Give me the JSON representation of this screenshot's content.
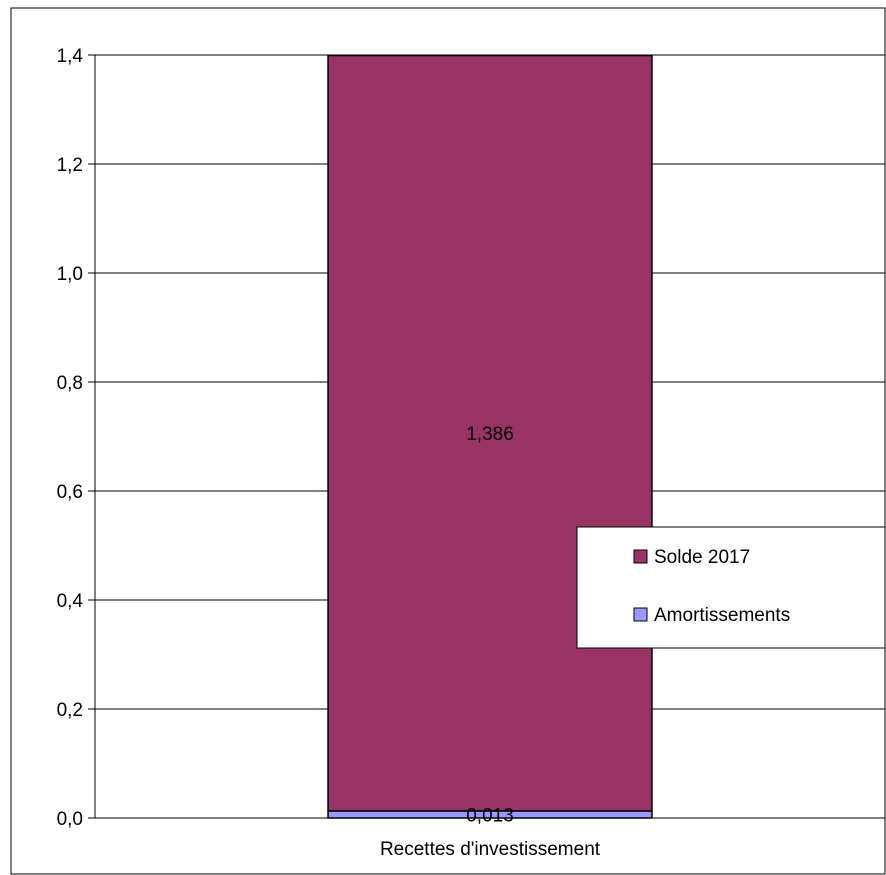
{
  "chart_data": {
    "type": "bar",
    "stacked": true,
    "categories": [
      "Recettes d'investissement"
    ],
    "series": [
      {
        "name": "Amortissements",
        "values": [
          0.013
        ],
        "value_labels": [
          "0,013"
        ],
        "color": "#9999ff"
      },
      {
        "name": "Solde 2017",
        "values": [
          1.386
        ],
        "value_labels": [
          "1,386"
        ],
        "color": "#993366"
      }
    ],
    "ylim": [
      0,
      1.4
    ],
    "yticks": [
      {
        "value": 0.0,
        "label": "0,0"
      },
      {
        "value": 0.2,
        "label": "0,2"
      },
      {
        "value": 0.4,
        "label": "0,4"
      },
      {
        "value": 0.6,
        "label": "0,6"
      },
      {
        "value": 0.8,
        "label": "0,8"
      },
      {
        "value": 1.0,
        "label": "1,0"
      },
      {
        "value": 1.2,
        "label": "1,2"
      },
      {
        "value": 1.4,
        "label": "1,4"
      }
    ],
    "grid": true,
    "legend": {
      "position": "right",
      "entries": [
        {
          "name": "Solde 2017",
          "color": "#993366"
        },
        {
          "name": "Amortissements",
          "color": "#9999ff"
        }
      ]
    }
  }
}
